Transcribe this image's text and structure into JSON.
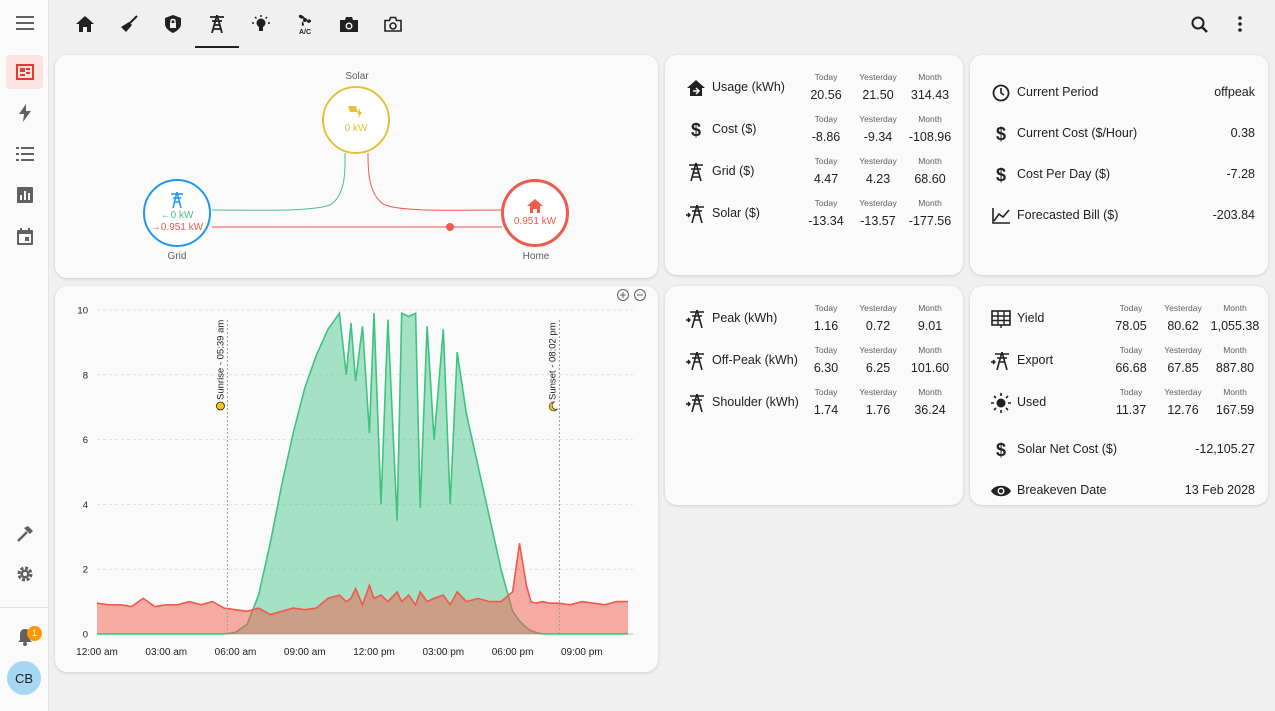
{
  "icons": {
    "menu": "menu-icon",
    "energy_dashboard": "dashboard-icon",
    "bolt": "lightning-icon",
    "logbook": "list-icon",
    "history": "chart-icon",
    "calendar": "calendar-icon",
    "developer": "hammer-icon",
    "settings": "gear-icon",
    "notifications": "bell-icon"
  },
  "sidebar": {
    "notification_count": "1",
    "avatar_initials": "CB"
  },
  "tabs": [
    {
      "icon": "home-icon"
    },
    {
      "icon": "broom-icon"
    },
    {
      "icon": "shield-lock-icon"
    },
    {
      "icon": "transmission-tower-icon",
      "active": true
    },
    {
      "icon": "lightbulb-icon"
    },
    {
      "icon": "air-conditioner-icon",
      "label": "A/C"
    },
    {
      "icon": "camera-icon"
    },
    {
      "icon": "camera-outline-icon"
    }
  ],
  "flow": {
    "solar": {
      "label": "Solar",
      "value": "0 kW"
    },
    "grid": {
      "label": "Grid",
      "in": "←0 kW",
      "out": "→0.951 kW"
    },
    "home": {
      "label": "Home",
      "value": "0.951 kW"
    }
  },
  "colors": {
    "solar": "#e6c13a",
    "grid": "#2196f3",
    "home": "#ef5a4a",
    "flow_in": "#4fc08d",
    "flow_out": "#ef5a4a"
  },
  "usage_card": {
    "headers": [
      "Today",
      "Yesterday",
      "Month"
    ],
    "rows": [
      {
        "icon": "home-import-icon",
        "label": "Usage (kWh)",
        "values": [
          "20.56",
          "21.50",
          "314.43"
        ]
      },
      {
        "icon": "dollar-icon",
        "label": "Cost ($)",
        "values": [
          "-8.86",
          "-9.34",
          "-108.96"
        ]
      },
      {
        "icon": "transmission-tower-icon",
        "label": "Grid ($)",
        "values": [
          "4.47",
          "4.23",
          "68.60"
        ]
      },
      {
        "icon": "transmission-tower-export-icon",
        "label": "Solar ($)",
        "values": [
          "-13.34",
          "-13.57",
          "-177.56"
        ]
      }
    ]
  },
  "period_card": {
    "rows": [
      {
        "icon": "clock-icon",
        "label": "Current Period",
        "value": "offpeak"
      },
      {
        "icon": "dollar-icon",
        "label": "Current Cost ($/Hour)",
        "value": "0.38"
      },
      {
        "icon": "dollar-icon",
        "label": "Cost Per Day ($)",
        "value": "-7.28"
      },
      {
        "icon": "chart-line-icon",
        "label": "Forecasted Bill ($)",
        "value": "-203.84"
      }
    ]
  },
  "tariff_card": {
    "headers": [
      "Today",
      "Yesterday",
      "Month"
    ],
    "rows": [
      {
        "icon": "transmission-tower-icon",
        "label": "Peak (kWh)",
        "values": [
          "1.16",
          "0.72",
          "9.01"
        ]
      },
      {
        "icon": "transmission-tower-icon",
        "label": "Off-Peak (kWh)",
        "values": [
          "6.30",
          "6.25",
          "101.60"
        ]
      },
      {
        "icon": "transmission-tower-icon",
        "label": "Shoulder (kWh)",
        "values": [
          "1.74",
          "1.76",
          "36.24"
        ]
      }
    ]
  },
  "solar_card": {
    "headers": [
      "Today",
      "Yesterday",
      "Month"
    ],
    "rows": [
      {
        "icon": "solar-panel-icon",
        "label": "Yield",
        "values": [
          "78.05",
          "80.62",
          "1,055.38"
        ]
      },
      {
        "icon": "transmission-tower-export-icon",
        "label": "Export",
        "values": [
          "66.68",
          "67.85",
          "887.80"
        ]
      },
      {
        "icon": "sun-icon",
        "label": "Used",
        "values": [
          "11.37",
          "12.76",
          "167.59"
        ]
      }
    ],
    "extra": [
      {
        "icon": "dollar-icon",
        "label": "Solar Net Cost ($)",
        "value": "-12,105.27"
      },
      {
        "icon": "eye-icon",
        "label": "Breakeven Date",
        "value": "13 Feb 2028"
      }
    ]
  },
  "chart_data": {
    "type": "area",
    "title": "",
    "ylim": [
      0,
      10
    ],
    "yticks": [
      "0",
      "2",
      "4",
      "6",
      "8",
      "10"
    ],
    "xticks": [
      "12:00 am",
      "03:00 am",
      "06:00 am",
      "09:00 am",
      "12:00 pm",
      "03:00 pm",
      "06:00 pm",
      "09:00 pm"
    ],
    "x_hours": [
      0,
      0.5,
      1,
      1.5,
      2,
      2.5,
      3,
      3.5,
      4,
      4.5,
      5,
      5.5,
      6,
      6.5,
      7,
      7.5,
      8,
      8.5,
      9,
      9.5,
      10,
      10.5,
      10.8,
      11,
      11.2,
      11.5,
      11.8,
      12,
      12.3,
      12.6,
      13,
      13.2,
      13.5,
      13.8,
      14,
      14.3,
      14.6,
      15,
      15.3,
      15.6,
      16,
      16.5,
      17,
      17.5,
      18,
      18.3,
      18.6,
      18.8,
      19,
      19.3,
      19.6,
      20,
      20.5,
      21,
      21.5,
      22,
      22.5,
      23
    ],
    "series": [
      {
        "name": "Solar",
        "color": "#3fc382",
        "values": [
          0,
          0,
          0,
          0,
          0,
          0,
          0,
          0,
          0,
          0,
          0,
          0,
          0.05,
          0.3,
          1.2,
          2.8,
          4.6,
          6.2,
          7.6,
          8.6,
          9.4,
          9.9,
          8.0,
          9.6,
          7.8,
          9.5,
          6.2,
          9.9,
          4.0,
          9.7,
          3.5,
          9.9,
          9.8,
          9.9,
          3.9,
          9.5,
          6.0,
          9.4,
          4.0,
          8.7,
          6.8,
          5.2,
          3.6,
          2.0,
          0.7,
          0.4,
          0.2,
          0.1,
          0.05,
          0,
          0,
          0,
          0,
          0,
          0,
          0,
          0,
          0
        ]
      },
      {
        "name": "Grid",
        "color": "#ef5a4a",
        "values": [
          0.95,
          0.9,
          0.9,
          0.85,
          1.1,
          0.85,
          0.9,
          0.9,
          1.0,
          0.9,
          1.0,
          0.8,
          0.75,
          0.7,
          0.8,
          0.6,
          0.7,
          0.8,
          0.75,
          0.8,
          1.1,
          1.2,
          1.0,
          1.1,
          1.4,
          0.9,
          1.5,
          1.1,
          1.2,
          1.0,
          1.3,
          1.0,
          1.2,
          0.9,
          1.3,
          1.0,
          1.1,
          1.2,
          0.9,
          1.3,
          1.0,
          1.1,
          1.0,
          1.0,
          1.3,
          2.8,
          1.5,
          1.0,
          0.95,
          1.0,
          0.95,
          0.95,
          0.9,
          1.0,
          0.95,
          0.9,
          1.0,
          1.0
        ]
      }
    ],
    "annotations": [
      {
        "label": "Sunrise - 05:39 am",
        "x_hours": 5.65,
        "icon": "sun-icon"
      },
      {
        "label": "Sunset - 08:02 pm",
        "x_hours": 20.03,
        "icon": "moon-icon"
      }
    ],
    "controls": [
      "zoom-in-icon",
      "zoom-out-icon"
    ]
  }
}
